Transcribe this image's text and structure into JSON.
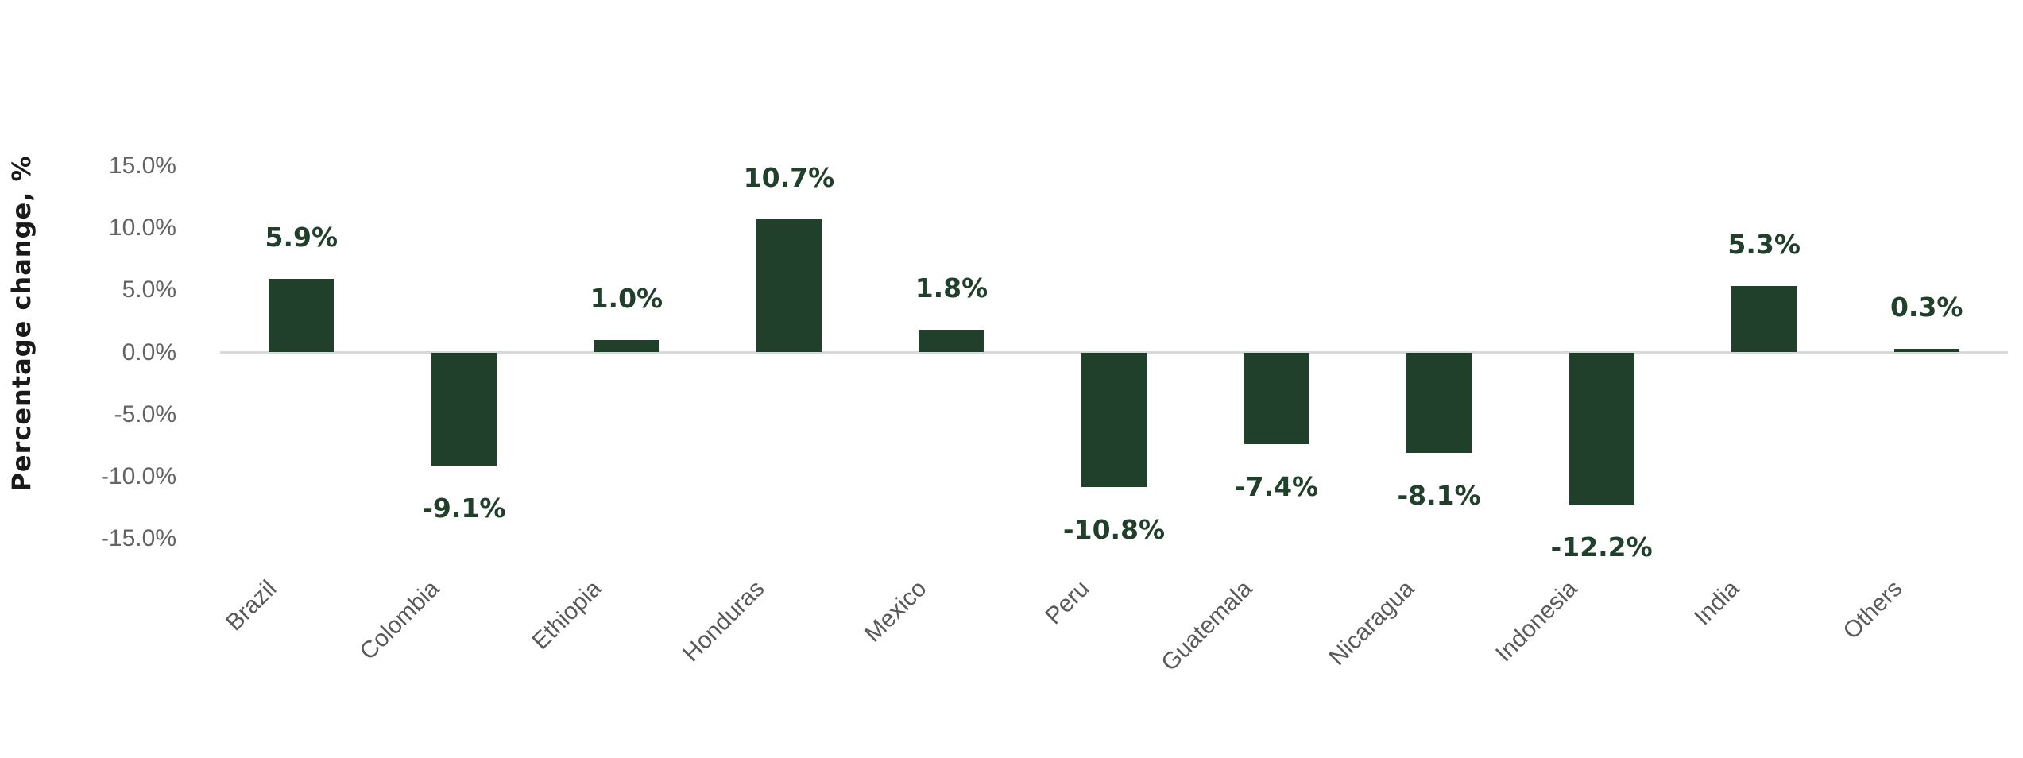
{
  "chart_data": {
    "type": "bar",
    "categories": [
      "Brazil",
      "Colombia",
      "Ethiopia",
      "Honduras",
      "Mexico",
      "Peru",
      "Guatemala",
      "Nicaragua",
      "Indonesia",
      "India",
      "Others"
    ],
    "values": [
      5.9,
      -9.1,
      1.0,
      10.7,
      1.8,
      -10.8,
      -7.4,
      -8.1,
      -12.2,
      5.3,
      0.3
    ],
    "data_labels": [
      "5.9%",
      "-9.1%",
      "1.0%",
      "10.7%",
      "1.8%",
      "-10.8%",
      "-7.4%",
      "-8.1%",
      "-12.2%",
      "5.3%",
      "0.3%"
    ],
    "title": "",
    "xlabel": "",
    "ylabel": "Percentage change, %",
    "ylim": [
      -15,
      15
    ],
    "ytick_values": [
      15,
      10,
      5,
      0,
      -5,
      -10,
      -15
    ],
    "ytick_labels": [
      "15.0%",
      "10.0%",
      "5.0%",
      "0.0%",
      "-5.0%",
      "-10.0%",
      "-15.0%"
    ],
    "grid": false,
    "legend": false,
    "colors": {
      "bar": "#21402C",
      "value_label": "#21402C",
      "axis_line": "#D9D9D9",
      "ytick_text": "#636363",
      "category_text": "#595959",
      "axis_title_text": "#1A1A1A",
      "background": "#FFFFFF"
    }
  }
}
